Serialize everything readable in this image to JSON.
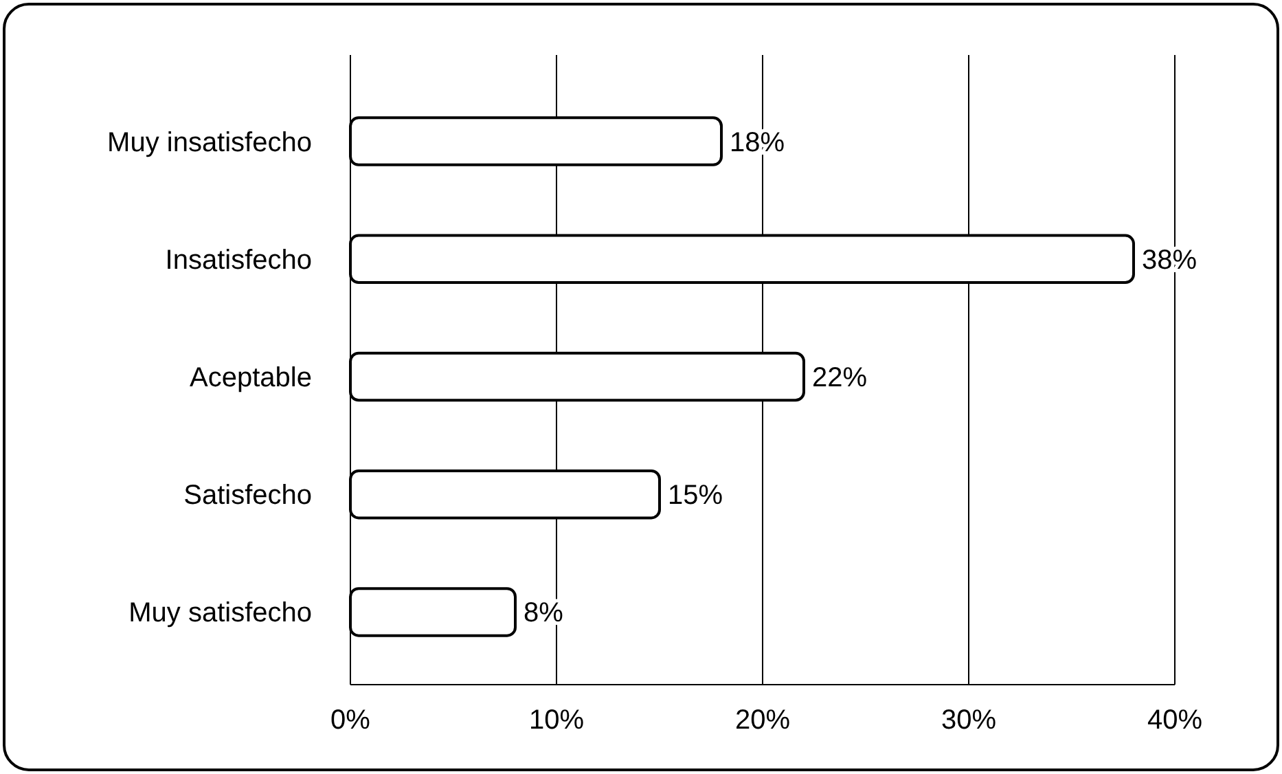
{
  "chart_data": {
    "type": "bar",
    "orientation": "horizontal",
    "categories": [
      "Muy insatisfecho",
      "Insatisfecho",
      "Aceptable",
      "Satisfecho",
      "Muy satisfecho"
    ],
    "values": [
      18,
      38,
      22,
      15,
      8
    ],
    "value_labels": [
      "18%",
      "38%",
      "22%",
      "15%",
      "8%"
    ],
    "color": "#ffffff",
    "xlim": [
      0,
      40
    ],
    "xticks": [
      {
        "value": 0,
        "label": "0%"
      },
      {
        "value": 10,
        "label": "10%"
      },
      {
        "value": 20,
        "label": "20%"
      },
      {
        "value": 30,
        "label": "30%"
      },
      {
        "value": 40,
        "label": "40%"
      }
    ],
    "grid": "x"
  }
}
